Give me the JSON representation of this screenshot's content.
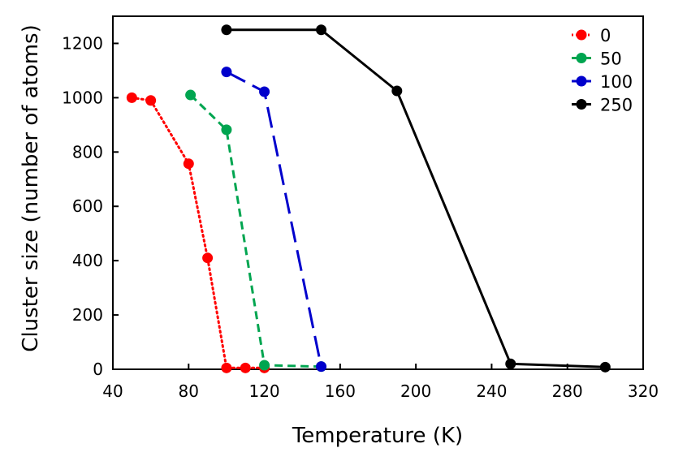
{
  "chart_data": {
    "type": "line",
    "title": "",
    "xlabel": "Temperature (K)",
    "ylabel": "Cluster size (number of atoms)",
    "xlim": [
      40,
      320
    ],
    "ylim": [
      0,
      1300
    ],
    "xticks": [
      "40",
      "80",
      "120",
      "160",
      "200",
      "240",
      "280",
      "320"
    ],
    "yticks": [
      "0",
      "200",
      "400",
      "600",
      "800",
      "1000",
      "1200"
    ],
    "legend_position": "top-right",
    "series": [
      {
        "name": "0",
        "color": "#ff0000",
        "dash": "dotted",
        "x": [
          50,
          60,
          80,
          90,
          100,
          110,
          120
        ],
        "y": [
          1000,
          990,
          757,
          410,
          5,
          5,
          5
        ]
      },
      {
        "name": "50",
        "color": "#00a550",
        "dash": "dashed",
        "x": [
          81,
          100,
          120,
          150
        ],
        "y": [
          1010,
          882,
          15,
          10
        ]
      },
      {
        "name": "100",
        "color": "#0000cc",
        "dash": "longdash",
        "x": [
          100,
          120,
          150
        ],
        "y": [
          1095,
          1022,
          10
        ]
      },
      {
        "name": "250",
        "color": "#000000",
        "dash": "solid",
        "x": [
          100,
          150,
          190,
          250,
          300
        ],
        "y": [
          1250,
          1250,
          1025,
          20,
          8
        ]
      }
    ]
  }
}
